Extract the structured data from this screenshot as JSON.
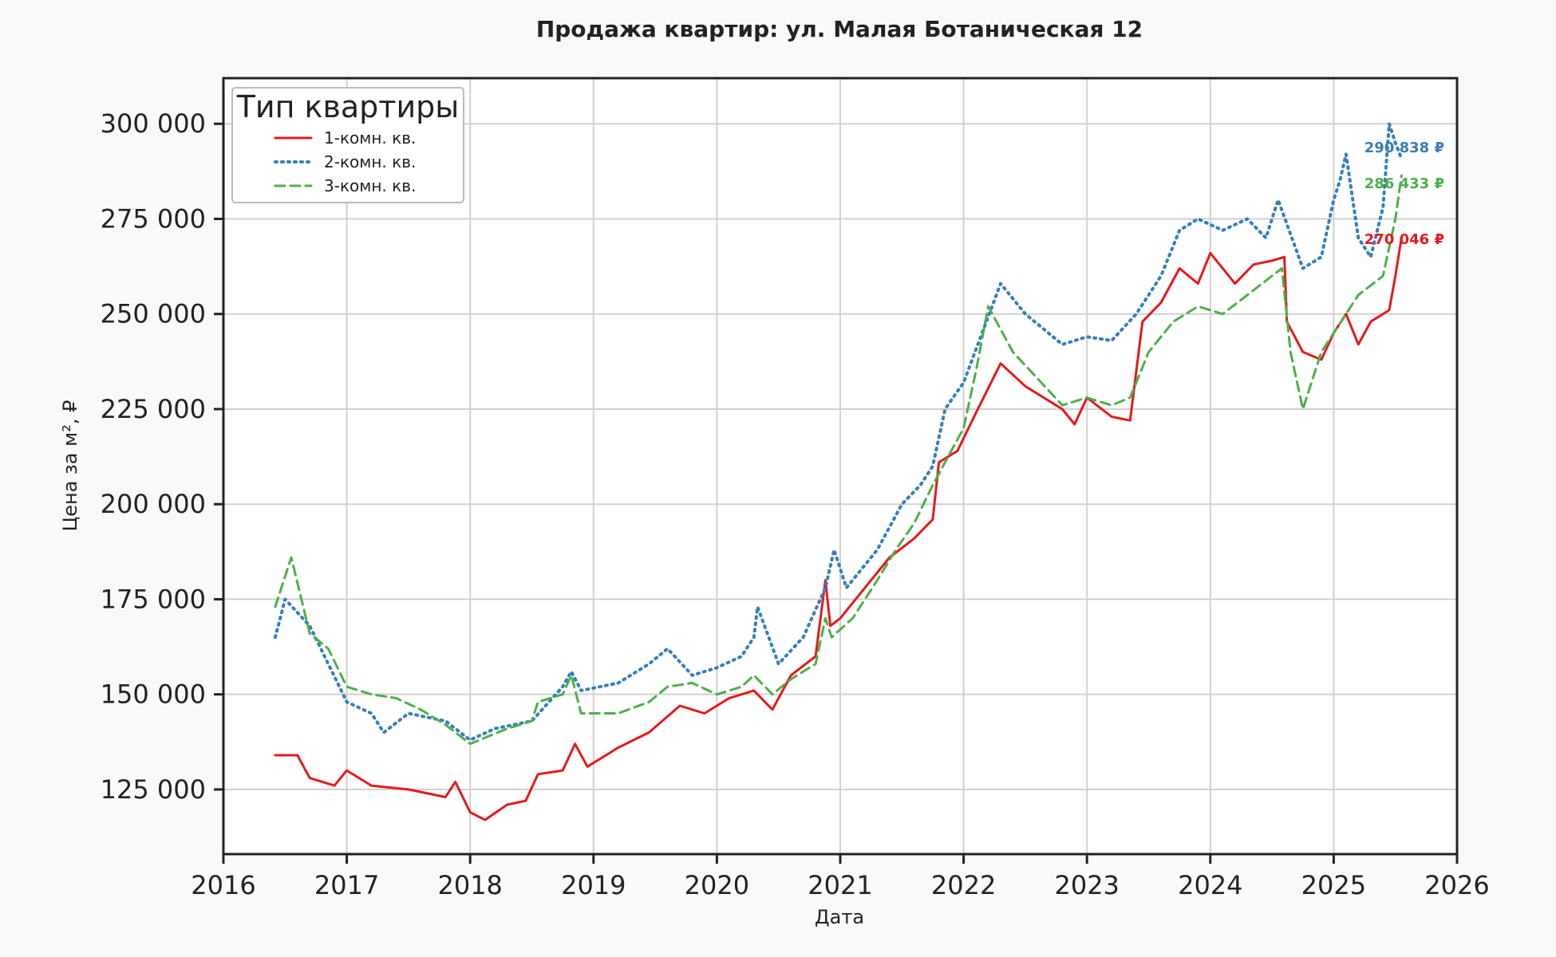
{
  "chart_data": {
    "type": "line",
    "title": "Продажа квартир: ул. Малая Ботаническая 12",
    "xlabel": "Дата",
    "ylabel": "Цена за м², ₽",
    "xlim": [
      2016,
      2026
    ],
    "ylim": [
      108000,
      312000
    ],
    "x_ticks": [
      2016,
      2017,
      2018,
      2019,
      2020,
      2021,
      2022,
      2023,
      2024,
      2025,
      2026
    ],
    "x_tick_labels": [
      "2016",
      "2017",
      "2018",
      "2019",
      "2020",
      "2021",
      "2022",
      "2023",
      "2024",
      "2025",
      "2026"
    ],
    "y_ticks": [
      125000,
      150000,
      175000,
      200000,
      225000,
      250000,
      275000,
      300000
    ],
    "y_tick_labels": [
      "125 000",
      "150 000",
      "175 000",
      "200 000",
      "225 000",
      "250 000",
      "275 000",
      "300 000"
    ],
    "grid": true,
    "legend": {
      "title": "Тип квартиры",
      "placement": "top-left"
    },
    "series": [
      {
        "name": "1-комн. кв.",
        "color": "#e41a1c",
        "style": "solid",
        "end_label": "270 046 ₽",
        "x": [
          2016.42,
          2016.6,
          2016.7,
          2016.9,
          2017.0,
          2017.2,
          2017.5,
          2017.8,
          2017.88,
          2018.0,
          2018.12,
          2018.3,
          2018.45,
          2018.55,
          2018.75,
          2018.85,
          2018.95,
          2019.2,
          2019.45,
          2019.7,
          2019.9,
          2020.1,
          2020.3,
          2020.45,
          2020.6,
          2020.8,
          2020.88,
          2020.92,
          2021.0,
          2021.2,
          2021.4,
          2021.6,
          2021.75,
          2021.8,
          2021.95,
          2022.1,
          2022.3,
          2022.5,
          2022.8,
          2022.9,
          2023.0,
          2023.2,
          2023.35,
          2023.45,
          2023.6,
          2023.75,
          2023.9,
          2024.0,
          2024.2,
          2024.35,
          2024.5,
          2024.6,
          2024.62,
          2024.75,
          2024.9,
          2025.0,
          2025.1,
          2025.2,
          2025.3,
          2025.45,
          2025.5,
          2025.55
        ],
        "y": [
          134000,
          134000,
          128000,
          126000,
          130000,
          126000,
          125000,
          123000,
          127000,
          119000,
          117000,
          121000,
          122000,
          129000,
          130000,
          137000,
          131000,
          136000,
          140000,
          147000,
          145000,
          149000,
          151000,
          146000,
          155000,
          160000,
          180000,
          168000,
          170000,
          178000,
          186000,
          191000,
          196000,
          211000,
          214000,
          224000,
          237000,
          231000,
          225000,
          221000,
          228000,
          223000,
          222000,
          248000,
          253000,
          262000,
          258000,
          266000,
          258000,
          263000,
          264000,
          265000,
          248000,
          240000,
          238000,
          245000,
          250000,
          242000,
          248000,
          251000,
          260000,
          270046
        ]
      },
      {
        "name": "2-комн. кв.",
        "color": "#377eb8",
        "style": "dotted",
        "end_label": "290 838 ₽",
        "x": [
          2016.42,
          2016.5,
          2016.7,
          2016.85,
          2017.0,
          2017.2,
          2017.3,
          2017.5,
          2017.8,
          2018.0,
          2018.2,
          2018.5,
          2018.75,
          2018.82,
          2018.9,
          2019.2,
          2019.45,
          2019.6,
          2019.8,
          2020.0,
          2020.2,
          2020.3,
          2020.33,
          2020.5,
          2020.7,
          2020.88,
          2020.95,
          2021.05,
          2021.3,
          2021.5,
          2021.65,
          2021.75,
          2021.85,
          2022.0,
          2022.15,
          2022.3,
          2022.5,
          2022.8,
          2023.0,
          2023.2,
          2023.4,
          2023.6,
          2023.75,
          2023.9,
          2024.1,
          2024.3,
          2024.45,
          2024.55,
          2024.75,
          2024.9,
          2025.0,
          2025.05,
          2025.1,
          2025.2,
          2025.3,
          2025.4,
          2025.45,
          2025.5,
          2025.55
        ],
        "y": [
          165000,
          175000,
          168000,
          158000,
          148000,
          145000,
          140000,
          145000,
          143000,
          138000,
          141000,
          143000,
          152000,
          156000,
          151000,
          153000,
          158000,
          162000,
          155000,
          157000,
          160000,
          165000,
          173000,
          158000,
          165000,
          178000,
          188000,
          178000,
          188000,
          200000,
          205000,
          210000,
          225000,
          232000,
          245000,
          258000,
          250000,
          242000,
          244000,
          243000,
          250000,
          260000,
          272000,
          275000,
          272000,
          275000,
          270000,
          280000,
          262000,
          265000,
          280000,
          285000,
          292000,
          270000,
          265000,
          278000,
          300000,
          295000,
          290838
        ]
      },
      {
        "name": "3-комн. кв.",
        "color": "#4daf4a",
        "style": "dashed",
        "end_label": "286 433 ₽",
        "x": [
          2016.42,
          2016.55,
          2016.7,
          2016.85,
          2017.0,
          2017.2,
          2017.4,
          2017.6,
          2017.8,
          2018.0,
          2018.3,
          2018.5,
          2018.55,
          2018.75,
          2018.82,
          2018.9,
          2019.2,
          2019.45,
          2019.6,
          2019.8,
          2020.0,
          2020.2,
          2020.3,
          2020.45,
          2020.6,
          2020.8,
          2020.88,
          2020.93,
          2021.1,
          2021.3,
          2021.45,
          2021.6,
          2021.75,
          2021.9,
          2022.0,
          2022.1,
          2022.2,
          2022.4,
          2022.6,
          2022.8,
          2023.0,
          2023.2,
          2023.35,
          2023.5,
          2023.7,
          2023.9,
          2024.1,
          2024.3,
          2024.5,
          2024.58,
          2024.65,
          2024.75,
          2024.9,
          2025.0,
          2025.2,
          2025.4,
          2025.5,
          2025.55
        ],
        "y": [
          173000,
          186000,
          166000,
          162000,
          152000,
          150000,
          149000,
          146000,
          142000,
          137000,
          141000,
          143000,
          148000,
          150000,
          155000,
          145000,
          145000,
          148000,
          152000,
          153000,
          150000,
          152000,
          155000,
          150000,
          154000,
          158000,
          170000,
          165000,
          170000,
          180000,
          188000,
          195000,
          205000,
          214000,
          220000,
          235000,
          252000,
          240000,
          233000,
          226000,
          228000,
          226000,
          228000,
          240000,
          248000,
          252000,
          250000,
          255000,
          260000,
          262000,
          240000,
          225000,
          240000,
          245000,
          255000,
          260000,
          275000,
          286433
        ]
      }
    ]
  }
}
